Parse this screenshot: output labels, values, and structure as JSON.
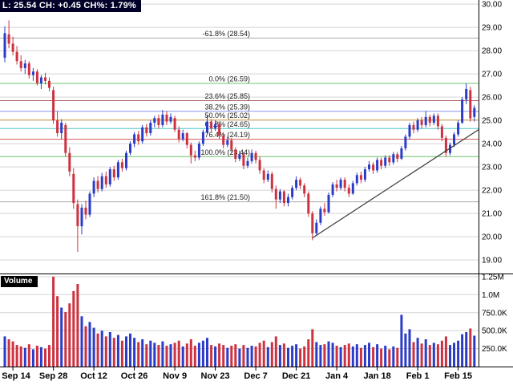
{
  "header": {
    "quote_line": "L: 25.54 CH: +0.45 CH%: 1.79%"
  },
  "volume_panel": {
    "label": "Volume"
  },
  "colors": {
    "up": "#2a3cc8",
    "down": "#cc3240",
    "grid": "#d4d4d4",
    "separator": "#000000",
    "trendline": "#3a3a3a",
    "background": "#ffffff"
  },
  "chart_data": {
    "type": "candlestick_with_volume",
    "title": "",
    "x_labels": [
      "Sep 14",
      "Sep 28",
      "Oct 12",
      "Oct 26",
      "Nov 9",
      "Nov 23",
      "Dec 7",
      "Dec 21",
      "Jan 4",
      "Jan 18",
      "Feb 1",
      "Feb 15"
    ],
    "x_label_indices": [
      2,
      12,
      22,
      32,
      42,
      52,
      62,
      72,
      82,
      92,
      102,
      112
    ],
    "price_axis": {
      "min": 19.0,
      "max": 30.0,
      "tick_step": 1.0,
      "ticks": [
        30,
        29,
        28,
        27,
        26,
        25,
        24,
        23,
        22,
        21,
        20,
        19
      ],
      "tick_labels": [
        "30.00",
        "29.00",
        "28.00",
        "27.00",
        "26.00",
        "25.00",
        "24.00",
        "23.00",
        "22.00",
        "21.00",
        "20.00",
        "19.00"
      ]
    },
    "volume_axis": {
      "ticks_k": [
        1250,
        1000,
        750,
        500,
        250
      ],
      "tick_labels": [
        "1.25M",
        "1.0M",
        "750.0K",
        "500.0K",
        "250.0K"
      ]
    },
    "fibonacci_levels": [
      {
        "label": "-61.8% (28.54)",
        "price": 28.54,
        "color": "#a8a8a8"
      },
      {
        "label": "0.0% (26.59)",
        "price": 26.59,
        "color": "#6dc06d"
      },
      {
        "label": "23.6% (25.85)",
        "price": 25.85,
        "color": "#aa5c5c"
      },
      {
        "label": "38.2% (25.39)",
        "price": 25.39,
        "color": "#8696ea"
      },
      {
        "label": "50.0% (25.02)",
        "price": 25.02,
        "color": "#d9a84e"
      },
      {
        "label": "61.8% (24.65)",
        "price": 24.65,
        "color": "#4ec4c4"
      },
      {
        "label": "76.4% (24.19)",
        "price": 24.19,
        "color": "#d45858"
      },
      {
        "label": "100.0% (23.44)",
        "price": 23.44,
        "color": "#6dc06d"
      },
      {
        "label": "161.8% (21.50)",
        "price": 21.5,
        "color": "#a8a8a8"
      }
    ],
    "trendline": {
      "from_index": 76,
      "from_price": 19.95,
      "to_index": 117,
      "to_price": 24.6
    },
    "candles": [
      [
        27.7,
        29.05,
        27.5,
        28.75
      ],
      [
        28.7,
        29.3,
        28.1,
        28.3
      ],
      [
        28.3,
        28.6,
        27.8,
        27.95
      ],
      [
        27.95,
        28.2,
        27.4,
        27.55
      ],
      [
        27.55,
        27.8,
        27.1,
        27.25
      ],
      [
        27.25,
        27.6,
        27.0,
        27.45
      ],
      [
        27.45,
        27.55,
        26.8,
        26.95
      ],
      [
        26.95,
        27.25,
        26.7,
        27.1
      ],
      [
        27.1,
        27.2,
        26.5,
        26.6
      ],
      [
        26.6,
        26.95,
        26.35,
        26.85
      ],
      [
        26.85,
        27.05,
        26.55,
        26.7
      ],
      [
        26.7,
        26.85,
        26.25,
        26.4
      ],
      [
        26.3,
        26.45,
        24.85,
        25.0
      ],
      [
        25.0,
        25.4,
        24.3,
        24.45
      ],
      [
        24.45,
        25.05,
        24.2,
        24.9
      ],
      [
        24.8,
        24.9,
        23.45,
        23.6
      ],
      [
        23.6,
        23.85,
        22.6,
        22.8
      ],
      [
        22.7,
        22.95,
        21.2,
        21.45
      ],
      [
        21.4,
        21.6,
        19.35,
        20.45
      ],
      [
        20.45,
        21.4,
        20.1,
        21.25
      ],
      [
        21.25,
        21.55,
        20.75,
        20.95
      ],
      [
        20.95,
        21.95,
        20.85,
        21.85
      ],
      [
        21.85,
        22.55,
        21.7,
        22.4
      ],
      [
        22.4,
        22.6,
        21.9,
        22.05
      ],
      [
        22.05,
        22.75,
        21.95,
        22.6
      ],
      [
        22.6,
        22.8,
        22.1,
        22.25
      ],
      [
        22.25,
        23.0,
        22.15,
        22.9
      ],
      [
        22.9,
        23.05,
        22.4,
        22.55
      ],
      [
        22.55,
        23.3,
        22.45,
        23.2
      ],
      [
        23.2,
        23.35,
        22.8,
        22.95
      ],
      [
        22.95,
        23.7,
        22.85,
        23.6
      ],
      [
        23.6,
        24.1,
        23.5,
        24.0
      ],
      [
        24.0,
        24.5,
        23.85,
        24.4
      ],
      [
        24.4,
        24.55,
        23.95,
        24.1
      ],
      [
        24.1,
        24.8,
        24.0,
        24.7
      ],
      [
        24.7,
        24.85,
        24.3,
        24.45
      ],
      [
        24.45,
        25.0,
        24.35,
        24.9
      ],
      [
        24.9,
        25.2,
        24.7,
        25.1
      ],
      [
        25.1,
        25.25,
        24.65,
        24.8
      ],
      [
        24.8,
        25.45,
        24.7,
        25.25
      ],
      [
        25.25,
        25.4,
        24.8,
        24.95
      ],
      [
        24.95,
        25.3,
        24.85,
        25.15
      ],
      [
        25.1,
        25.2,
        24.5,
        24.6
      ],
      [
        24.6,
        24.75,
        24.05,
        24.2
      ],
      [
        24.2,
        24.6,
        24.1,
        24.45
      ],
      [
        24.45,
        24.5,
        23.8,
        23.95
      ],
      [
        23.95,
        24.05,
        23.15,
        23.5
      ],
      [
        23.5,
        23.7,
        23.25,
        23.4
      ],
      [
        23.4,
        24.1,
        23.3,
        24.0
      ],
      [
        24.0,
        24.6,
        23.9,
        24.5
      ],
      [
        24.5,
        25.2,
        24.4,
        24.95
      ],
      [
        24.95,
        25.05,
        24.5,
        24.65
      ],
      [
        24.65,
        25.0,
        24.55,
        24.85
      ],
      [
        24.85,
        24.95,
        24.2,
        24.35
      ],
      [
        24.35,
        24.45,
        23.8,
        23.95
      ],
      [
        23.95,
        24.3,
        23.85,
        24.15
      ],
      [
        24.15,
        24.25,
        23.6,
        23.75
      ],
      [
        23.75,
        23.85,
        23.2,
        23.35
      ],
      [
        23.35,
        23.7,
        23.25,
        23.55
      ],
      [
        23.55,
        23.65,
        22.9,
        23.05
      ],
      [
        23.05,
        23.4,
        22.95,
        23.25
      ],
      [
        23.25,
        23.75,
        23.15,
        23.6
      ],
      [
        23.6,
        23.7,
        23.15,
        23.3
      ],
      [
        23.3,
        23.45,
        22.7,
        22.85
      ],
      [
        22.85,
        22.95,
        22.3,
        22.45
      ],
      [
        22.45,
        22.85,
        22.35,
        22.7
      ],
      [
        22.7,
        22.8,
        21.9,
        22.05
      ],
      [
        22.05,
        22.2,
        21.2,
        21.6
      ],
      [
        21.6,
        22.05,
        21.45,
        21.95
      ],
      [
        21.95,
        22.0,
        21.3,
        21.45
      ],
      [
        21.45,
        21.85,
        21.3,
        21.7
      ],
      [
        21.7,
        22.2,
        21.6,
        22.1
      ],
      [
        22.1,
        22.6,
        22.0,
        22.45
      ],
      [
        22.45,
        22.55,
        22.05,
        22.2
      ],
      [
        22.2,
        22.3,
        21.7,
        21.85
      ],
      [
        21.85,
        21.95,
        20.85,
        21.0
      ],
      [
        21.0,
        21.1,
        19.85,
        20.15
      ],
      [
        20.15,
        20.75,
        20.05,
        20.6
      ],
      [
        20.6,
        21.3,
        20.5,
        21.2
      ],
      [
        21.2,
        21.45,
        20.9,
        21.05
      ],
      [
        21.05,
        21.9,
        21.0,
        21.8
      ],
      [
        21.8,
        22.35,
        21.7,
        22.25
      ],
      [
        22.25,
        22.45,
        21.95,
        22.1
      ],
      [
        22.1,
        22.55,
        22.0,
        22.45
      ],
      [
        22.45,
        22.55,
        21.95,
        22.1
      ],
      [
        22.1,
        22.25,
        21.7,
        21.85
      ],
      [
        21.85,
        22.4,
        21.8,
        22.3
      ],
      [
        22.3,
        22.75,
        22.2,
        22.65
      ],
      [
        22.65,
        22.8,
        22.3,
        22.45
      ],
      [
        22.45,
        23.0,
        22.35,
        22.9
      ],
      [
        22.9,
        23.25,
        22.8,
        23.1
      ],
      [
        23.1,
        23.2,
        22.7,
        22.85
      ],
      [
        22.85,
        23.4,
        22.75,
        23.3
      ],
      [
        23.3,
        23.4,
        22.9,
        23.05
      ],
      [
        23.05,
        23.5,
        22.95,
        23.4
      ],
      [
        23.4,
        23.5,
        23.05,
        23.2
      ],
      [
        23.2,
        23.65,
        23.1,
        23.55
      ],
      [
        23.55,
        23.65,
        23.2,
        23.35
      ],
      [
        23.35,
        23.9,
        23.3,
        23.8
      ],
      [
        23.8,
        24.4,
        23.7,
        24.3
      ],
      [
        24.3,
        24.9,
        24.2,
        24.8
      ],
      [
        24.8,
        24.95,
        24.45,
        24.6
      ],
      [
        24.6,
        25.1,
        24.5,
        25.0
      ],
      [
        25.0,
        25.15,
        24.65,
        24.8
      ],
      [
        24.8,
        25.4,
        24.7,
        25.15
      ],
      [
        25.15,
        25.25,
        24.75,
        24.9
      ],
      [
        24.9,
        25.3,
        24.8,
        25.2
      ],
      [
        25.2,
        25.3,
        24.6,
        24.75
      ],
      [
        24.75,
        24.85,
        24.1,
        24.25
      ],
      [
        24.25,
        24.35,
        23.44,
        23.6
      ],
      [
        23.6,
        24.05,
        23.5,
        23.95
      ],
      [
        23.95,
        24.5,
        23.85,
        24.4
      ],
      [
        24.4,
        25.0,
        24.3,
        24.9
      ],
      [
        24.9,
        26.0,
        24.85,
        25.9
      ],
      [
        25.9,
        26.59,
        25.7,
        26.35
      ],
      [
        26.3,
        26.45,
        24.95,
        25.09
      ],
      [
        25.15,
        25.65,
        24.95,
        25.54
      ]
    ],
    "volumes_k": [
      420,
      380,
      350,
      300,
      280,
      260,
      310,
      240,
      290,
      270,
      250,
      300,
      1250,
      980,
      820,
      760,
      880,
      1050,
      1150,
      700,
      560,
      620,
      540,
      460,
      500,
      420,
      480,
      400,
      440,
      360,
      420,
      460,
      400,
      340,
      380,
      310,
      360,
      330,
      300,
      350,
      290,
      310,
      330,
      360,
      280,
      320,
      380,
      290,
      330,
      360,
      400,
      300,
      280,
      320,
      300,
      260,
      290,
      310,
      250,
      300,
      260,
      290,
      280,
      330,
      360,
      270,
      340,
      420,
      300,
      320,
      260,
      290,
      310,
      250,
      280,
      380,
      520,
      340,
      300,
      310,
      350,
      330,
      290,
      270,
      300,
      320,
      280,
      310,
      260,
      300,
      330,
      270,
      310,
      250,
      290,
      240,
      280,
      260,
      720,
      460,
      520,
      340,
      400,
      320,
      380,
      300,
      330,
      310,
      360,
      420,
      300,
      330,
      360,
      450,
      480,
      530,
      430
    ]
  }
}
